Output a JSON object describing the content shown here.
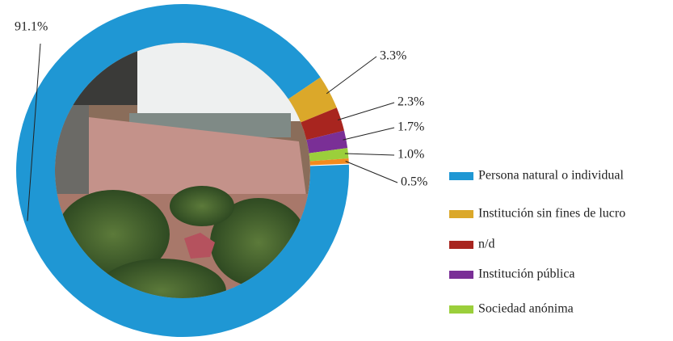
{
  "chart_data": {
    "type": "donut",
    "categories": [
      "Persona natural o individual",
      "Institución sin fines de lucro",
      "n/d",
      "Institución pública",
      "Sociedad anónima",
      null
    ],
    "values": [
      91.1,
      3.3,
      2.3,
      1.7,
      1.0,
      0.5
    ],
    "value_labels": [
      "91.1%",
      "3.3%",
      "2.3%",
      "1.7%",
      "1.0%",
      "0.5%"
    ],
    "colors": [
      "#1f97d4",
      "#dba82a",
      "#a8251f",
      "#7a2f96",
      "#9bcf3b",
      "#f28a1e"
    ],
    "legend": "right"
  }
}
